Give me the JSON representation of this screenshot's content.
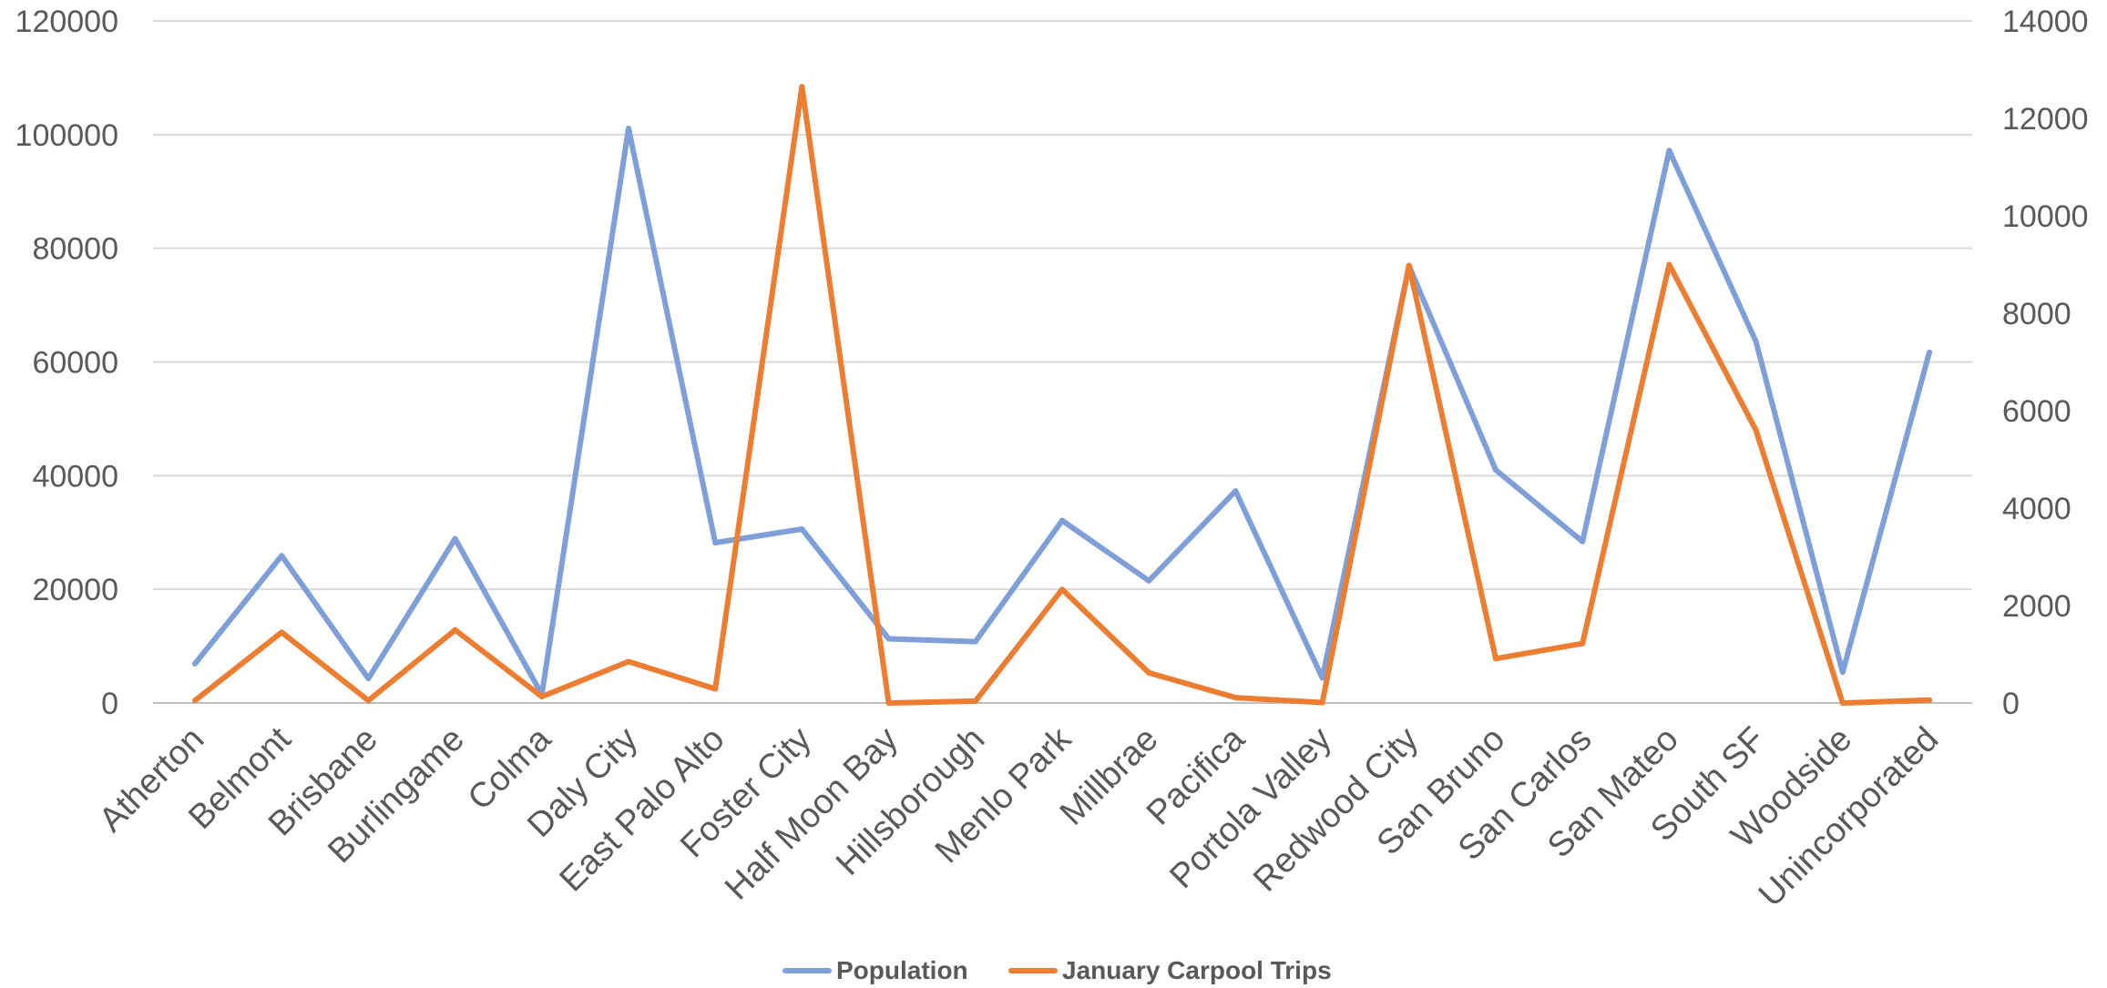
{
  "chart_data": {
    "type": "line",
    "categories": [
      "Atherton",
      "Belmont",
      "Brisbane",
      "Burlingame",
      "Colma",
      "Daly City",
      "East Palo Alto",
      "Foster City",
      "Half Moon Bay",
      "Hillsborough",
      "Menlo Park",
      "Millbrae",
      "Pacifica",
      "Portola Valley",
      "Redwood City",
      "San Bruno",
      "San Carlos",
      "San Mateo",
      "South SF",
      "Woodside",
      "Unincorporated"
    ],
    "series": [
      {
        "name": "Population",
        "axis": "left",
        "color": "#7F9FD8",
        "values": [
          6900,
          25900,
          4300,
          28900,
          1500,
          101100,
          28200,
          30600,
          11300,
          10800,
          32100,
          21500,
          37300,
          4400,
          76900,
          41000,
          28400,
          97200,
          63600,
          5400,
          61700
        ]
      },
      {
        "name": "January Carpool Trips",
        "axis": "right",
        "color": "#ED7D31",
        "values": [
          50,
          1450,
          50,
          1500,
          130,
          850,
          290,
          12650,
          0,
          40,
          2330,
          620,
          110,
          10,
          8980,
          910,
          1220,
          9000,
          5600,
          0,
          60
        ]
      }
    ],
    "left_axis": {
      "ylim": [
        0,
        120000
      ],
      "ticks": [
        "0",
        "20000",
        "40000",
        "60000",
        "80000",
        "100000",
        "120000"
      ]
    },
    "right_axis": {
      "ylim": [
        0,
        14000
      ],
      "ticks": [
        "0",
        "2000",
        "4000",
        "6000",
        "8000",
        "10000",
        "12000",
        "14000"
      ]
    },
    "grid": true,
    "legend_position": "bottom",
    "title": "",
    "xlabel": "",
    "ylabel": ""
  }
}
